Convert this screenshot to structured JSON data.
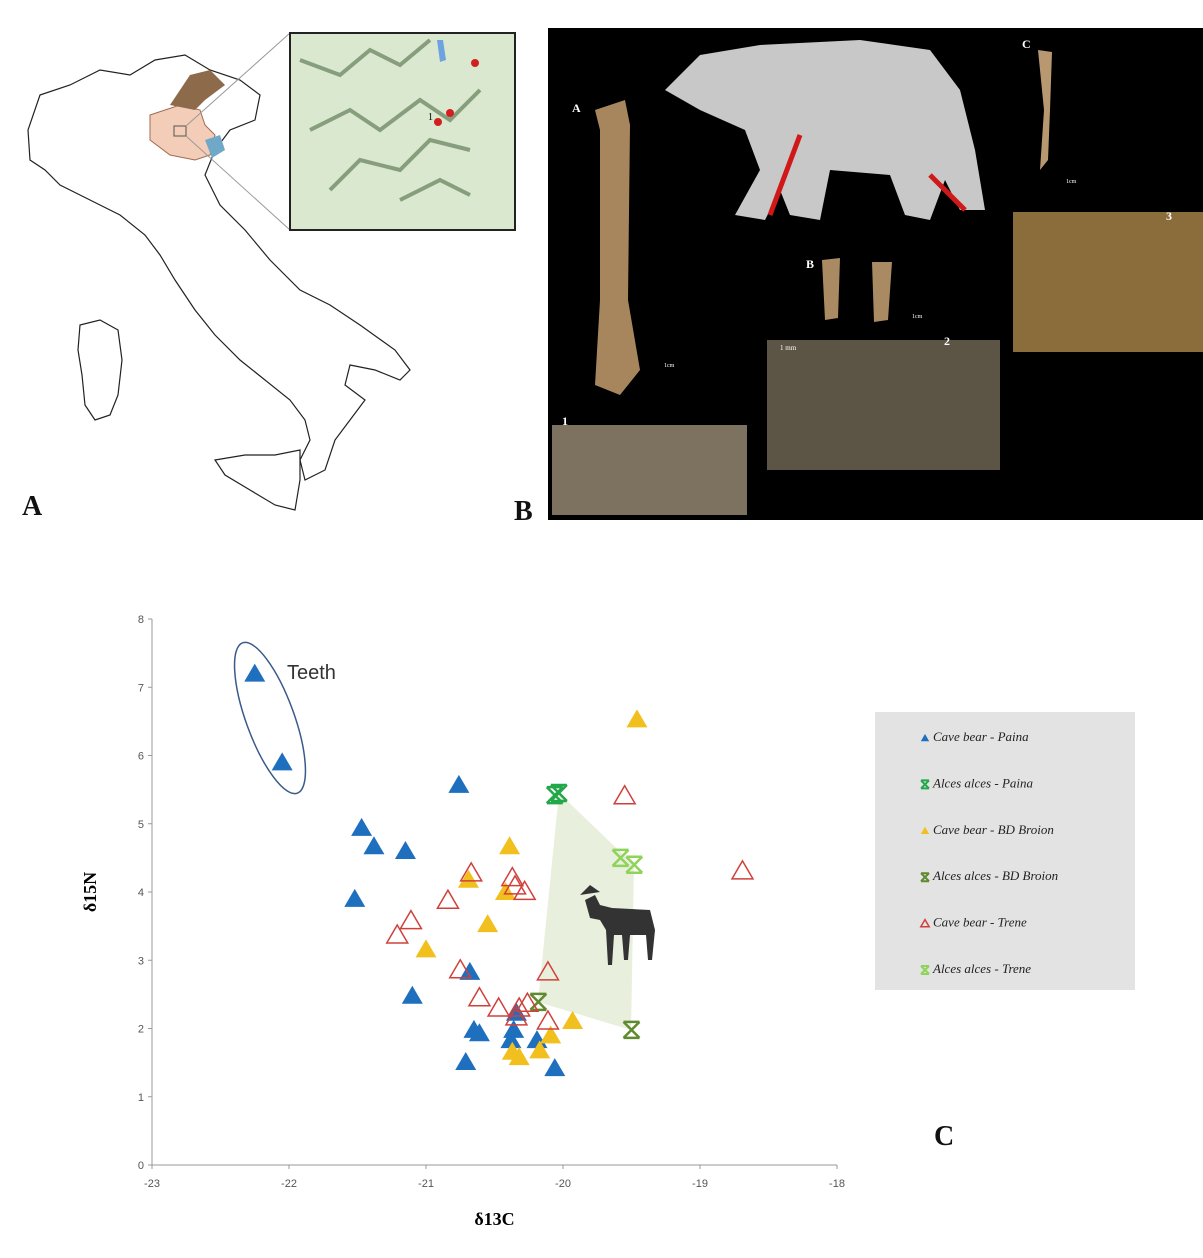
{
  "figure": {
    "panel_labels": [
      "A",
      "B",
      "C"
    ],
    "photo_labels": [
      "A",
      "B",
      "C",
      "1",
      "2",
      "3"
    ],
    "scale_cm": "1cm",
    "scale_mm": "1 mm",
    "inset_site": "1"
  },
  "chart_data": {
    "type": "scatter",
    "xlabel": "δ13C",
    "ylabel": "δ15N",
    "xlim": [
      -23,
      -18
    ],
    "xticks": [
      -23,
      -22,
      -21,
      -20,
      -19,
      -18
    ],
    "ylim": [
      0,
      8
    ],
    "yticks": [
      0,
      1,
      2,
      3,
      4,
      5,
      6,
      7,
      8
    ],
    "annotation": "Teeth",
    "series": [
      {
        "name": "Cave bear - Paina",
        "color": "#1f6fbf",
        "marker": "triangle",
        "x": [
          -22.25,
          -22.05,
          -20.76,
          -21.47,
          -21.38,
          -21.15,
          -21.52,
          -20.68,
          -21.1,
          -20.34,
          -20.65,
          -20.61,
          -20.36,
          -20.19,
          -20.38,
          -20.71,
          -20.06
        ],
        "y": [
          7.2,
          5.9,
          5.57,
          4.94,
          4.67,
          4.6,
          3.9,
          2.83,
          2.48,
          2.23,
          1.98,
          1.93,
          1.98,
          1.83,
          1.83,
          1.51,
          1.42
        ]
      },
      {
        "name": "Alces alces - Paina",
        "color": "#22a84a",
        "marker": "x",
        "x": [
          -20.03,
          -20.06
        ],
        "y": [
          5.45,
          5.42
        ]
      },
      {
        "name": "Cave bear - BD Broion",
        "color": "#f2c01e",
        "marker": "triangle",
        "x": [
          -19.46,
          -20.39,
          -20.69,
          -20.42,
          -20.55,
          -21.0,
          -19.93,
          -20.09,
          -20.17,
          -20.37,
          -20.32
        ],
        "y": [
          6.53,
          4.67,
          4.18,
          4.0,
          3.53,
          3.16,
          2.11,
          1.9,
          1.68,
          1.66,
          1.58
        ]
      },
      {
        "name": "Alces alces - BD Broion",
        "color": "#5f8a30",
        "marker": "x",
        "x": [
          -20.18,
          -19.5
        ],
        "y": [
          2.39,
          1.98
        ]
      },
      {
        "name": "Cave bear - Trene",
        "color": "#d0403a",
        "marker": "triangle-open",
        "x": [
          -19.55,
          -18.69,
          -20.67,
          -20.37,
          -20.35,
          -20.28,
          -20.84,
          -21.11,
          -21.21,
          -20.75,
          -20.11,
          -20.61,
          -20.47,
          -20.32,
          -20.26,
          -20.11,
          -20.34
        ],
        "y": [
          5.41,
          4.31,
          4.28,
          4.21,
          4.09,
          4.01,
          3.88,
          3.58,
          3.37,
          2.86,
          2.83,
          2.45,
          2.3,
          2.3,
          2.37,
          2.11,
          2.17
        ]
      },
      {
        "name": "Alces alces - Trene",
        "color": "#8fd35a",
        "marker": "x",
        "x": [
          -19.58,
          -19.48
        ],
        "y": [
          4.5,
          4.4
        ]
      }
    ]
  }
}
